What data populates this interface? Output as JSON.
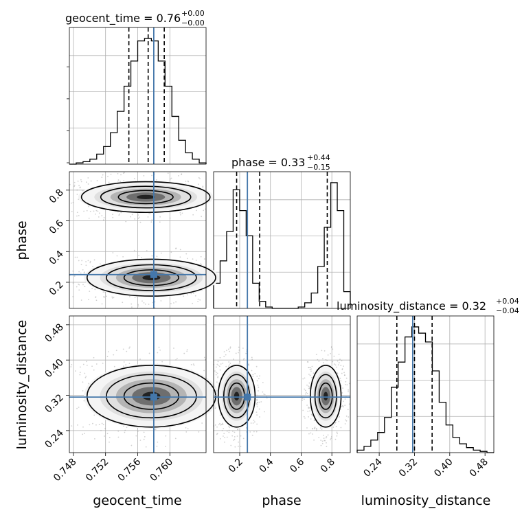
{
  "chart_data": {
    "type": "corner",
    "parameters": [
      "geocent_time",
      "phase",
      "luminosity_distance"
    ],
    "truths": {
      "geocent_time": 0.758,
      "phase": 0.25,
      "luminosity_distance": 0.316
    },
    "colors": {
      "truth": "#4477aa",
      "hist": "#000000",
      "quantile": "#000000",
      "grid": "#b0b0b0"
    },
    "grid": true,
    "quantiles": [
      0.16,
      0.5,
      0.84
    ],
    "ranges": {
      "geocent_time": [
        0.7475,
        0.7645
      ],
      "phase": [
        0.03,
        0.92
      ],
      "luminosity_distance": [
        0.19,
        0.5
      ]
    },
    "ticks": {
      "geocent_time": [
        {
          "value": 0.748,
          "label": "0.748"
        },
        {
          "value": 0.752,
          "label": "0.752"
        },
        {
          "value": 0.756,
          "label": "0.756"
        },
        {
          "value": 0.76,
          "label": "0.760"
        }
      ],
      "phase": [
        {
          "value": 0.2,
          "label": "0.2"
        },
        {
          "value": 0.4,
          "label": "0.4"
        },
        {
          "value": 0.6,
          "label": "0.6"
        },
        {
          "value": 0.8,
          "label": "0.8"
        }
      ],
      "luminosity_distance": [
        {
          "value": 0.24,
          "label": "0.24"
        },
        {
          "value": 0.32,
          "label": "0.32"
        },
        {
          "value": 0.4,
          "label": "0.40"
        },
        {
          "value": 0.48,
          "label": "0.48"
        }
      ]
    },
    "titles": {
      "geocent_time": {
        "main": "geocent_time = 0.76",
        "sup": "+0.00",
        "sub": "−0.00"
      },
      "phase": {
        "main": "phase = 0.33",
        "sup": "+0.44",
        "sub": "−0.15"
      },
      "luminosity_distance": {
        "main": "luminosity_distance = 0.32",
        "sup": "+0.04",
        "sub": "−0.04"
      }
    },
    "histograms": {
      "geocent_time": {
        "edges_range": [
          0.7475,
          0.7645
        ],
        "counts": [
          0,
          1,
          2,
          4,
          8,
          14,
          25,
          42,
          62,
          82,
          98,
          100,
          98,
          82,
          62,
          38,
          19,
          9,
          4,
          1
        ],
        "quantile_lines": [
          0.7549,
          0.7573,
          0.7593
        ]
      },
      "phase": {
        "edges_range": [
          0.03,
          0.92
        ],
        "counts": [
          18,
          34,
          55,
          85,
          70,
          52,
          18,
          5,
          1,
          0,
          0,
          0,
          0,
          1,
          4,
          11,
          30,
          58,
          90,
          70,
          12
        ],
        "quantile_lines": [
          0.18,
          0.33,
          0.77
        ]
      },
      "luminosity_distance": {
        "edges_range": [
          0.19,
          0.5
        ],
        "counts": [
          2,
          5,
          10,
          16,
          28,
          52,
          72,
          92,
          100,
          95,
          88,
          65,
          40,
          22,
          12,
          7,
          4,
          2,
          1,
          0
        ],
        "quantile_lines": [
          0.28,
          0.32,
          0.36
        ]
      }
    },
    "contours_2d": [
      {
        "x": "geocent_time",
        "y": "phase",
        "blobs": [
          {
            "cx": 0.757,
            "cy": 0.755,
            "sx": 0.004,
            "sy": 0.05,
            "w": 0.5
          },
          {
            "cx": 0.7577,
            "cy": 0.23,
            "sx": 0.004,
            "sy": 0.06,
            "w": 0.5
          }
        ]
      },
      {
        "x": "geocent_time",
        "y": "luminosity_distance",
        "blobs": [
          {
            "cx": 0.7577,
            "cy": 0.318,
            "sx": 0.004,
            "sy": 0.035,
            "w": 1.0
          }
        ]
      },
      {
        "x": "phase",
        "y": "luminosity_distance",
        "blobs": [
          {
            "cx": 0.18,
            "cy": 0.318,
            "sx": 0.06,
            "sy": 0.035,
            "w": 0.5
          },
          {
            "cx": 0.76,
            "cy": 0.318,
            "sx": 0.05,
            "sy": 0.035,
            "w": 0.5
          }
        ]
      }
    ]
  }
}
